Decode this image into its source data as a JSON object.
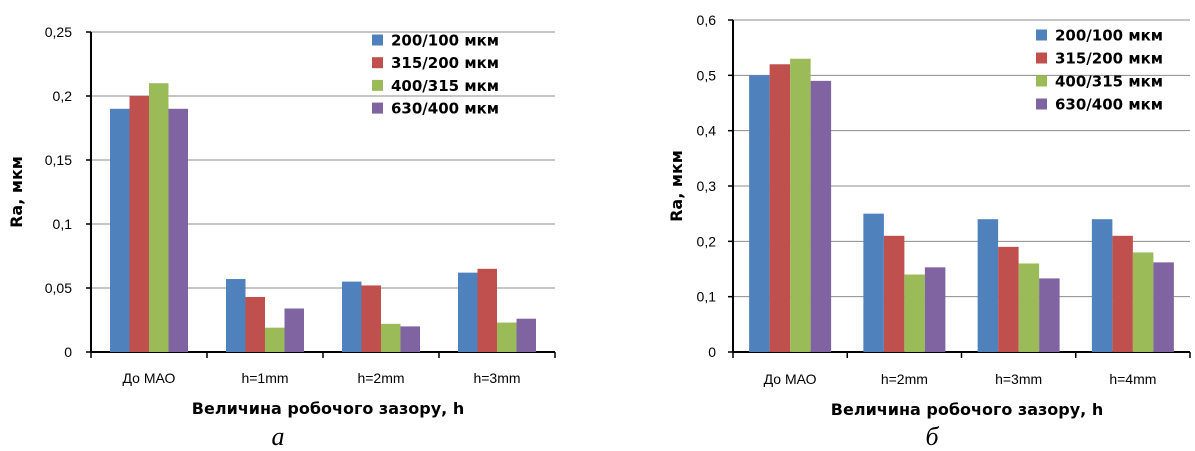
{
  "colors": {
    "s1": "#4F81BD",
    "s2": "#C0504D",
    "s3": "#9BBB59",
    "s4": "#8064A2",
    "grid": "#8C8C8C",
    "axis": "#000000"
  },
  "chart_data": [
    {
      "id": "a",
      "type": "bar",
      "caption": "а",
      "xlabel": "Величина робочого зазору, h",
      "ylabel": "Ra, мкм",
      "ylim": [
        0,
        0.25
      ],
      "yticks": [
        "0",
        "0,05",
        "0,1",
        "0,15",
        "0,2",
        "0,25"
      ],
      "grid": true,
      "legend_position": "top-right",
      "categories": [
        "До МАО",
        "h=1mm",
        "h=2mm",
        "h=3mm"
      ],
      "series": [
        {
          "name": "200/100 мкм",
          "values": [
            0.19,
            0.057,
            0.055,
            0.062
          ]
        },
        {
          "name": "315/200 мкм",
          "values": [
            0.2,
            0.043,
            0.052,
            0.065
          ]
        },
        {
          "name": "400/315 мкм",
          "values": [
            0.21,
            0.019,
            0.022,
            0.023
          ]
        },
        {
          "name": "630/400 мкм",
          "values": [
            0.19,
            0.034,
            0.02,
            0.026
          ]
        }
      ]
    },
    {
      "id": "b",
      "type": "bar",
      "caption": "б",
      "xlabel": "Величина робочого зазору, h",
      "ylabel": "Ra, мкм",
      "ylim": [
        0,
        0.6
      ],
      "yticks": [
        "0",
        "0,1",
        "0,2",
        "0,3",
        "0,4",
        "0,5",
        "0,6"
      ],
      "grid": true,
      "legend_position": "top-right",
      "categories": [
        "До МАО",
        "h=2mm",
        "h=3mm",
        "h=4mm"
      ],
      "series": [
        {
          "name": "200/100 мкм",
          "values": [
            0.5,
            0.25,
            0.24,
            0.24
          ]
        },
        {
          "name": "315/200 мкм",
          "values": [
            0.52,
            0.21,
            0.19,
            0.21
          ]
        },
        {
          "name": "400/315 мкм",
          "values": [
            0.53,
            0.14,
            0.16,
            0.18
          ]
        },
        {
          "name": "630/400 мкм",
          "values": [
            0.49,
            0.153,
            0.133,
            0.162
          ]
        }
      ]
    }
  ]
}
